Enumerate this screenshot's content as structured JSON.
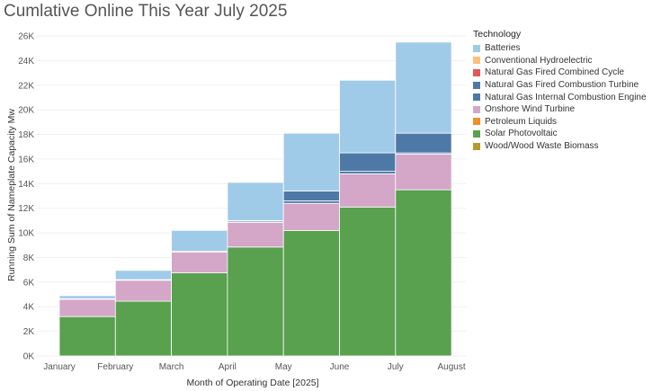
{
  "chart_data": {
    "type": "bar",
    "stacked": true,
    "title": "Cumlative Online This Year July 2025",
    "xlabel": "Month of Operating Date [2025]",
    "ylabel": "Running Sum of Nameplate Capacity Mw",
    "categories": [
      "January",
      "February",
      "March",
      "April",
      "May",
      "June",
      "July"
    ],
    "x_tick_labels": [
      "January",
      "February",
      "March",
      "April",
      "May",
      "June",
      "July",
      "August"
    ],
    "y_tick_labels": [
      "0K",
      "2K",
      "4K",
      "6K",
      "8K",
      "10K",
      "12K",
      "14K",
      "16K",
      "18K",
      "20K",
      "22K",
      "24K",
      "26K"
    ],
    "ylim": [
      0,
      26000
    ],
    "grid": true,
    "legend_title": "Technology",
    "legend_position": "right",
    "series": [
      {
        "name": "Solar Photovoltaic",
        "color": "#59a14f",
        "values": [
          3200,
          4450,
          6750,
          8850,
          10200,
          12100,
          13500
        ]
      },
      {
        "name": "Onshore Wind Turbine",
        "color": "#d4a6c8",
        "values": [
          1400,
          1700,
          1700,
          2000,
          2200,
          2700,
          2900
        ]
      },
      {
        "name": "Natural Gas Internal Combustion Engine",
        "color": "#4e79a7",
        "values": [
          0,
          0,
          0,
          100,
          200,
          200,
          100
        ]
      },
      {
        "name": "Natural Gas Fired Combustion Turbine",
        "color": "#4e79a7",
        "values": [
          50,
          50,
          50,
          50,
          800,
          1500,
          1600
        ]
      },
      {
        "name": "Batteries",
        "color": "#a0cbe8",
        "values": [
          250,
          750,
          1700,
          3100,
          4700,
          5900,
          7400
        ]
      }
    ],
    "legend": [
      {
        "name": "Batteries",
        "color": "#a0cbe8"
      },
      {
        "name": "Conventional Hydroelectric",
        "color": "#ffbe7d"
      },
      {
        "name": "Natural Gas Fired Combined Cycle",
        "color": "#e15759"
      },
      {
        "name": "Natural Gas Fired Combustion Turbine",
        "color": "#4e79a7"
      },
      {
        "name": "Natural Gas Internal Combustion Engine",
        "color": "#4e79a7"
      },
      {
        "name": "Onshore Wind Turbine",
        "color": "#d4a6c8"
      },
      {
        "name": "Petroleum Liquids",
        "color": "#f28e2b"
      },
      {
        "name": "Solar Photovoltaic",
        "color": "#59a14f"
      },
      {
        "name": "Wood/Wood Waste Biomass",
        "color": "#b6992d"
      }
    ]
  }
}
